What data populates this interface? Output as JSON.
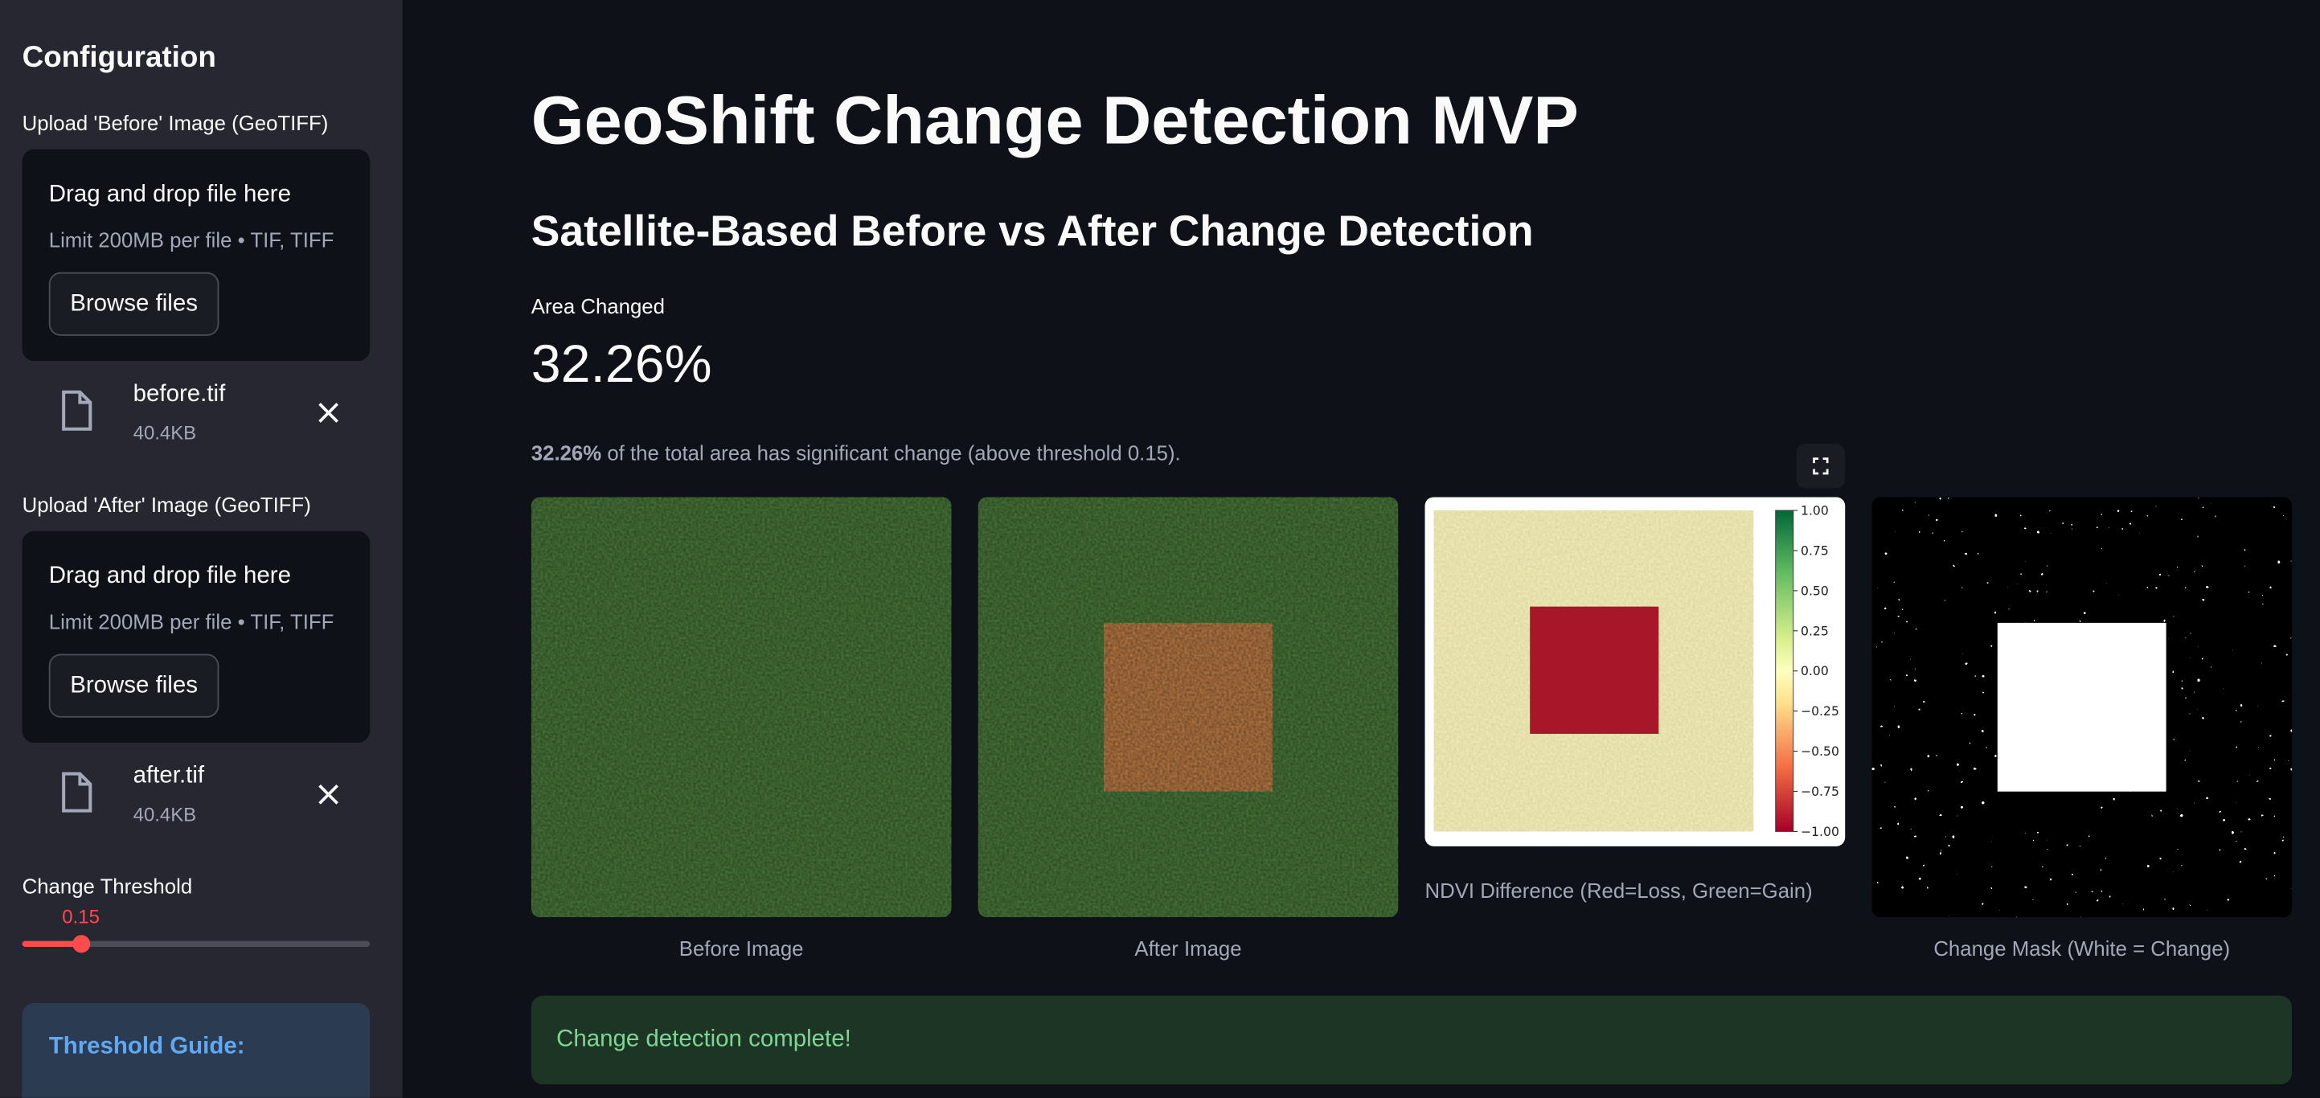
{
  "sidebar": {
    "title": "Configuration",
    "uploaders": [
      {
        "label": "Upload 'Before' Image (GeoTIFF)",
        "drop_text": "Drag and drop file here",
        "limit_text": "Limit 200MB per file • TIF, TIFF",
        "button": "Browse files",
        "file_name": "before.tif",
        "file_size": "40.4KB"
      },
      {
        "label": "Upload 'After' Image (GeoTIFF)",
        "drop_text": "Drag and drop file here",
        "limit_text": "Limit 200MB per file • TIF, TIFF",
        "button": "Browse files",
        "file_name": "after.tif",
        "file_size": "40.4KB"
      }
    ],
    "threshold": {
      "label": "Change Threshold",
      "value": 0.15
    },
    "guide_title": "Threshold Guide:"
  },
  "main": {
    "title": "GeoShift Change Detection MVP",
    "subtitle": "Satellite-Based Before vs After Change Detection",
    "metric": {
      "label": "Area Changed",
      "value": "32.26%"
    },
    "summary": {
      "bold": "32.26%",
      "text": " of the total area has significant change (above threshold 0.15)."
    },
    "images": [
      {
        "caption": "Before Image"
      },
      {
        "caption": "After Image"
      },
      {
        "caption": "NDVI Difference (Red=Loss, Green=Gain)"
      },
      {
        "caption": "Change Mask (White = Change)"
      }
    ],
    "colorbar_ticks": [
      "1.00",
      "0.75",
      "0.50",
      "0.25",
      "0.00",
      "−0.25",
      "−0.50",
      "−0.75",
      "−1.00"
    ],
    "success": "Change detection complete!"
  }
}
